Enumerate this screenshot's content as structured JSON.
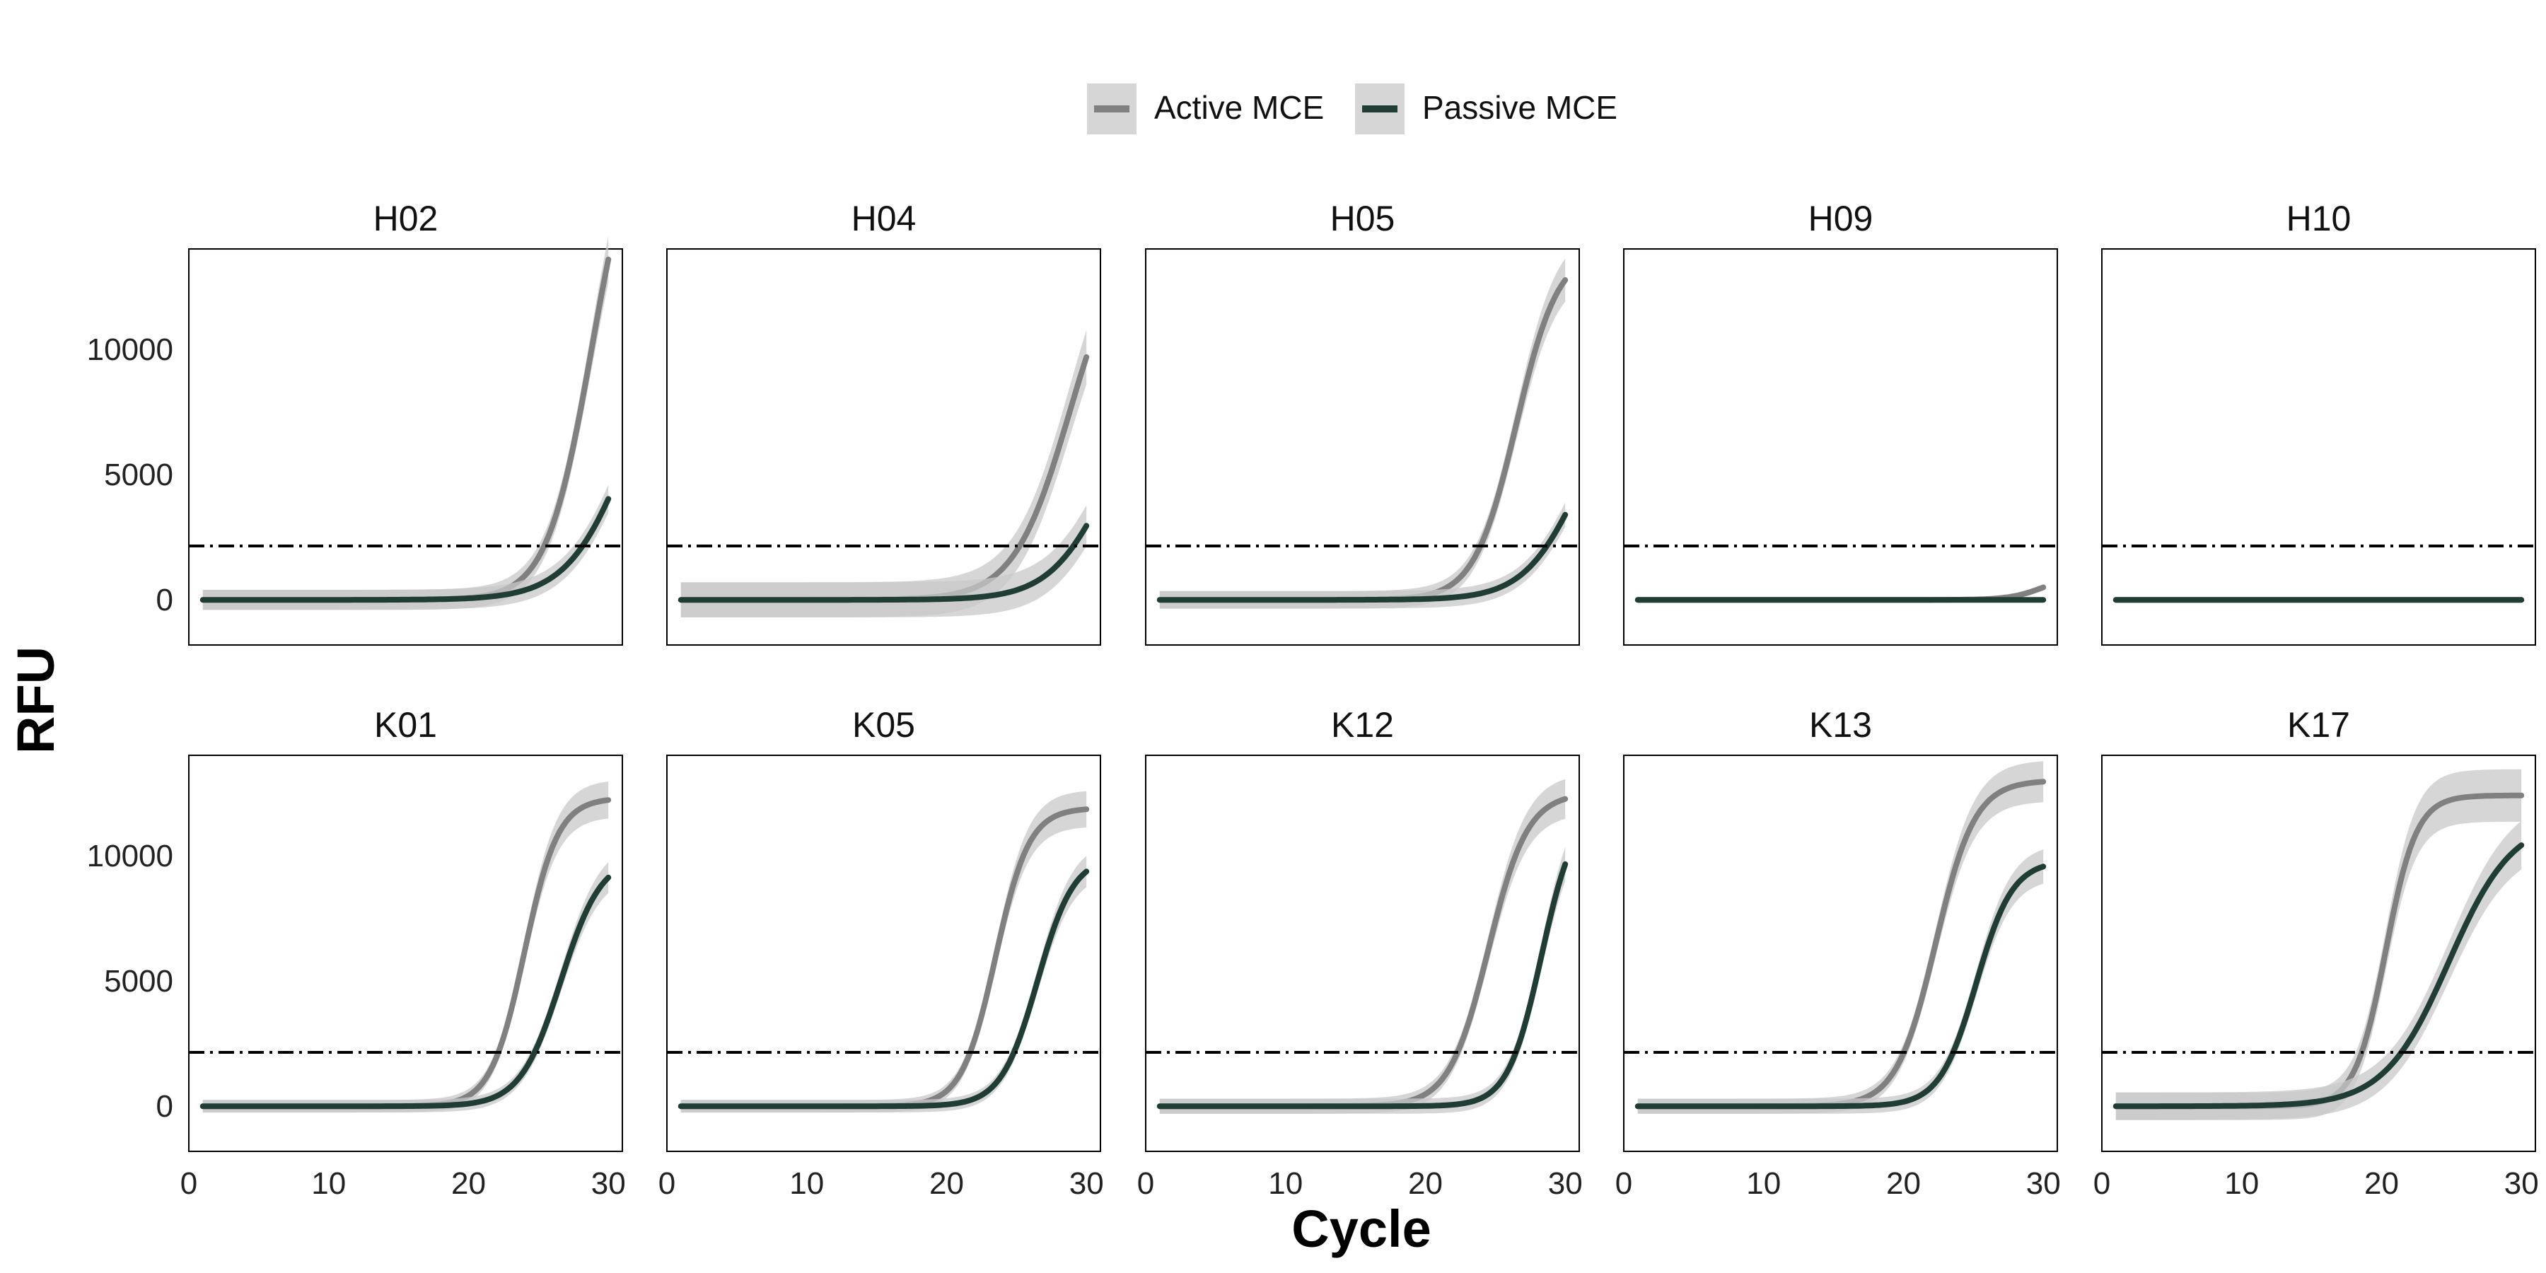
{
  "chart_data": {
    "type": "line",
    "layout": "faceted grid",
    "xlabel": "Cycle",
    "ylabel": "RFU",
    "xlim": [
      0,
      31
    ],
    "ylim": [
      -1800,
      14000
    ],
    "xticks": [
      0,
      10,
      20,
      30
    ],
    "yticks": [
      0,
      5000,
      10000
    ],
    "threshold": 2150,
    "grid": false,
    "legend_position": "top",
    "series": [
      {
        "name": "Active MCE",
        "color": "#808080"
      },
      {
        "name": "Passive MCE",
        "color": "#1f3d34"
      }
    ],
    "band_color": "#c8c8c8",
    "panels": [
      {
        "title": "H02",
        "band": 400,
        "active": {
          "baseline": 0,
          "max": 20000,
          "mid": 28.8,
          "slope": 1.6
        },
        "passive": {
          "baseline": 0,
          "max": 12000,
          "mid": 31.5,
          "slope": 2.2
        }
      },
      {
        "title": "H04",
        "band": 700,
        "active": {
          "baseline": 0,
          "max": 15000,
          "mid": 28.8,
          "slope": 2.0
        },
        "passive": {
          "baseline": 0,
          "max": 9000,
          "mid": 31.5,
          "slope": 2.1
        }
      },
      {
        "title": "H05",
        "band": 350,
        "active": {
          "baseline": 0,
          "max": 14000,
          "mid": 26.5,
          "slope": 1.5
        },
        "passive": {
          "baseline": 0,
          "max": 9000,
          "mid": 31.0,
          "slope": 2.0
        }
      },
      {
        "title": "H09",
        "band": 60,
        "active": {
          "baseline": 0,
          "max": 1000,
          "mid": 30,
          "slope": 1.2
        },
        "passive": {
          "baseline": 0,
          "max": 0,
          "mid": 30,
          "slope": 1
        }
      },
      {
        "title": "H10",
        "band": 40,
        "active": {
          "baseline": 0,
          "max": 0,
          "mid": 30,
          "slope": 1
        },
        "passive": {
          "baseline": 0,
          "max": 0,
          "mid": 30,
          "slope": 1
        }
      },
      {
        "title": "K01",
        "band": 250,
        "active": {
          "baseline": 0,
          "max": 12300,
          "mid": 24.0,
          "slope": 1.2
        },
        "passive": {
          "baseline": 0,
          "max": 10000,
          "mid": 26.6,
          "slope": 1.45
        }
      },
      {
        "title": "K05",
        "band": 250,
        "active": {
          "baseline": 0,
          "max": 11900,
          "mid": 23.5,
          "slope": 1.2
        },
        "passive": {
          "baseline": 0,
          "max": 10000,
          "mid": 26.5,
          "slope": 1.3
        }
      },
      {
        "title": "K12",
        "band": 300,
        "active": {
          "baseline": 0,
          "max": 12500,
          "mid": 24.5,
          "slope": 1.4
        },
        "passive": {
          "baseline": 0,
          "max": 12000,
          "mid": 28.3,
          "slope": 1.2
        }
      },
      {
        "title": "K13",
        "band": 300,
        "active": {
          "baseline": 0,
          "max": 13000,
          "mid": 22.3,
          "slope": 1.4
        },
        "passive": {
          "baseline": 0,
          "max": 9800,
          "mid": 25.2,
          "slope": 1.3
        }
      },
      {
        "title": "K17",
        "band": 550,
        "active": {
          "baseline": 0,
          "max": 12400,
          "mid": 20.3,
          "slope": 1.1
        },
        "passive": {
          "baseline": 0,
          "max": 11500,
          "mid": 24.8,
          "slope": 2.3
        }
      }
    ]
  }
}
